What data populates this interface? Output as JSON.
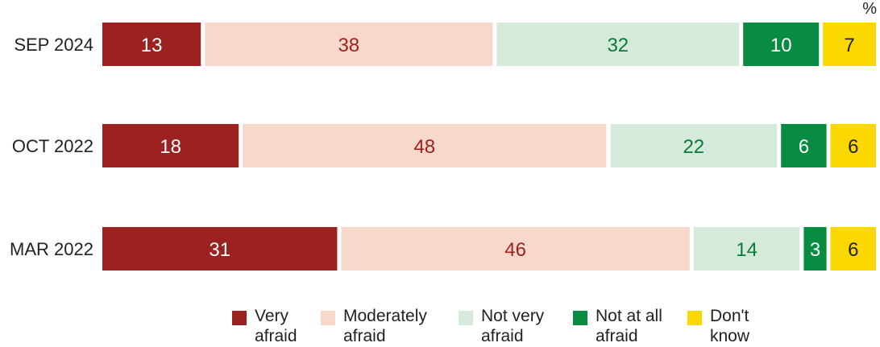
{
  "unit_label": "%",
  "colors": {
    "very_afraid": "#9b2220",
    "moderately_afraid": "#f8d8cb",
    "not_very_afraid": "#d5eadb",
    "not_at_all_afraid": "#088c42",
    "dont_know": "#fbd800"
  },
  "legend": [
    {
      "label": "Very\nafraid",
      "color_key": "very_afraid"
    },
    {
      "label": "Moderately\nafraid",
      "color_key": "moderately_afraid"
    },
    {
      "label": "Not very\nafraid",
      "color_key": "not_very_afraid"
    },
    {
      "label": "Not at all\nafraid",
      "color_key": "not_at_all_afraid"
    },
    {
      "label": "Don't\nknow",
      "color_key": "dont_know"
    }
  ],
  "chart_data": {
    "type": "bar",
    "orientation": "horizontal",
    "stacked": true,
    "unit": "%",
    "categories": [
      "SEP 2024",
      "OCT 2022",
      "MAR 2022"
    ],
    "series": [
      {
        "name": "Very afraid",
        "values": [
          13,
          18,
          31
        ],
        "color": "#9b2220",
        "label_color": "#ffffff"
      },
      {
        "name": "Moderately afraid",
        "values": [
          38,
          48,
          46
        ],
        "color": "#f8d8cb",
        "label_color": "#9b2220"
      },
      {
        "name": "Not very afraid",
        "values": [
          32,
          22,
          14
        ],
        "color": "#d5eadb",
        "label_color": "#0a7a3a"
      },
      {
        "name": "Not at all afraid",
        "values": [
          10,
          6,
          3
        ],
        "color": "#088c42",
        "label_color": "#ffffff"
      },
      {
        "name": "Don't know",
        "values": [
          7,
          6,
          6
        ],
        "color": "#fbd800",
        "label_color": "#222222"
      }
    ],
    "legend_position": "bottom",
    "grid": false
  }
}
